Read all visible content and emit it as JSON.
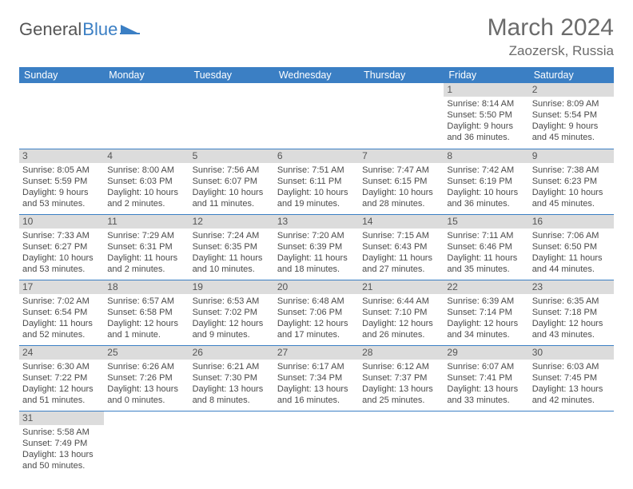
{
  "brand": {
    "part1": "General",
    "part2": "Blue"
  },
  "title": "March 2024",
  "location": "Zaozersk, Russia",
  "colors": {
    "header_bg": "#3b7fc4",
    "header_text": "#ffffff",
    "daynum_bg": "#dcdcdc",
    "row_border": "#3b7fc4",
    "text": "#4a4a4a",
    "title_text": "#6b6b6b",
    "page_bg": "#ffffff"
  },
  "weekdays": [
    "Sunday",
    "Monday",
    "Tuesday",
    "Wednesday",
    "Thursday",
    "Friday",
    "Saturday"
  ],
  "weeks": [
    [
      null,
      null,
      null,
      null,
      null,
      {
        "n": "1",
        "sunrise": "Sunrise: 8:14 AM",
        "sunset": "Sunset: 5:50 PM",
        "day1": "Daylight: 9 hours",
        "day2": "and 36 minutes."
      },
      {
        "n": "2",
        "sunrise": "Sunrise: 8:09 AM",
        "sunset": "Sunset: 5:54 PM",
        "day1": "Daylight: 9 hours",
        "day2": "and 45 minutes."
      }
    ],
    [
      {
        "n": "3",
        "sunrise": "Sunrise: 8:05 AM",
        "sunset": "Sunset: 5:59 PM",
        "day1": "Daylight: 9 hours",
        "day2": "and 53 minutes."
      },
      {
        "n": "4",
        "sunrise": "Sunrise: 8:00 AM",
        "sunset": "Sunset: 6:03 PM",
        "day1": "Daylight: 10 hours",
        "day2": "and 2 minutes."
      },
      {
        "n": "5",
        "sunrise": "Sunrise: 7:56 AM",
        "sunset": "Sunset: 6:07 PM",
        "day1": "Daylight: 10 hours",
        "day2": "and 11 minutes."
      },
      {
        "n": "6",
        "sunrise": "Sunrise: 7:51 AM",
        "sunset": "Sunset: 6:11 PM",
        "day1": "Daylight: 10 hours",
        "day2": "and 19 minutes."
      },
      {
        "n": "7",
        "sunrise": "Sunrise: 7:47 AM",
        "sunset": "Sunset: 6:15 PM",
        "day1": "Daylight: 10 hours",
        "day2": "and 28 minutes."
      },
      {
        "n": "8",
        "sunrise": "Sunrise: 7:42 AM",
        "sunset": "Sunset: 6:19 PM",
        "day1": "Daylight: 10 hours",
        "day2": "and 36 minutes."
      },
      {
        "n": "9",
        "sunrise": "Sunrise: 7:38 AM",
        "sunset": "Sunset: 6:23 PM",
        "day1": "Daylight: 10 hours",
        "day2": "and 45 minutes."
      }
    ],
    [
      {
        "n": "10",
        "sunrise": "Sunrise: 7:33 AM",
        "sunset": "Sunset: 6:27 PM",
        "day1": "Daylight: 10 hours",
        "day2": "and 53 minutes."
      },
      {
        "n": "11",
        "sunrise": "Sunrise: 7:29 AM",
        "sunset": "Sunset: 6:31 PM",
        "day1": "Daylight: 11 hours",
        "day2": "and 2 minutes."
      },
      {
        "n": "12",
        "sunrise": "Sunrise: 7:24 AM",
        "sunset": "Sunset: 6:35 PM",
        "day1": "Daylight: 11 hours",
        "day2": "and 10 minutes."
      },
      {
        "n": "13",
        "sunrise": "Sunrise: 7:20 AM",
        "sunset": "Sunset: 6:39 PM",
        "day1": "Daylight: 11 hours",
        "day2": "and 18 minutes."
      },
      {
        "n": "14",
        "sunrise": "Sunrise: 7:15 AM",
        "sunset": "Sunset: 6:43 PM",
        "day1": "Daylight: 11 hours",
        "day2": "and 27 minutes."
      },
      {
        "n": "15",
        "sunrise": "Sunrise: 7:11 AM",
        "sunset": "Sunset: 6:46 PM",
        "day1": "Daylight: 11 hours",
        "day2": "and 35 minutes."
      },
      {
        "n": "16",
        "sunrise": "Sunrise: 7:06 AM",
        "sunset": "Sunset: 6:50 PM",
        "day1": "Daylight: 11 hours",
        "day2": "and 44 minutes."
      }
    ],
    [
      {
        "n": "17",
        "sunrise": "Sunrise: 7:02 AM",
        "sunset": "Sunset: 6:54 PM",
        "day1": "Daylight: 11 hours",
        "day2": "and 52 minutes."
      },
      {
        "n": "18",
        "sunrise": "Sunrise: 6:57 AM",
        "sunset": "Sunset: 6:58 PM",
        "day1": "Daylight: 12 hours",
        "day2": "and 1 minute."
      },
      {
        "n": "19",
        "sunrise": "Sunrise: 6:53 AM",
        "sunset": "Sunset: 7:02 PM",
        "day1": "Daylight: 12 hours",
        "day2": "and 9 minutes."
      },
      {
        "n": "20",
        "sunrise": "Sunrise: 6:48 AM",
        "sunset": "Sunset: 7:06 PM",
        "day1": "Daylight: 12 hours",
        "day2": "and 17 minutes."
      },
      {
        "n": "21",
        "sunrise": "Sunrise: 6:44 AM",
        "sunset": "Sunset: 7:10 PM",
        "day1": "Daylight: 12 hours",
        "day2": "and 26 minutes."
      },
      {
        "n": "22",
        "sunrise": "Sunrise: 6:39 AM",
        "sunset": "Sunset: 7:14 PM",
        "day1": "Daylight: 12 hours",
        "day2": "and 34 minutes."
      },
      {
        "n": "23",
        "sunrise": "Sunrise: 6:35 AM",
        "sunset": "Sunset: 7:18 PM",
        "day1": "Daylight: 12 hours",
        "day2": "and 43 minutes."
      }
    ],
    [
      {
        "n": "24",
        "sunrise": "Sunrise: 6:30 AM",
        "sunset": "Sunset: 7:22 PM",
        "day1": "Daylight: 12 hours",
        "day2": "and 51 minutes."
      },
      {
        "n": "25",
        "sunrise": "Sunrise: 6:26 AM",
        "sunset": "Sunset: 7:26 PM",
        "day1": "Daylight: 13 hours",
        "day2": "and 0 minutes."
      },
      {
        "n": "26",
        "sunrise": "Sunrise: 6:21 AM",
        "sunset": "Sunset: 7:30 PM",
        "day1": "Daylight: 13 hours",
        "day2": "and 8 minutes."
      },
      {
        "n": "27",
        "sunrise": "Sunrise: 6:17 AM",
        "sunset": "Sunset: 7:34 PM",
        "day1": "Daylight: 13 hours",
        "day2": "and 16 minutes."
      },
      {
        "n": "28",
        "sunrise": "Sunrise: 6:12 AM",
        "sunset": "Sunset: 7:37 PM",
        "day1": "Daylight: 13 hours",
        "day2": "and 25 minutes."
      },
      {
        "n": "29",
        "sunrise": "Sunrise: 6:07 AM",
        "sunset": "Sunset: 7:41 PM",
        "day1": "Daylight: 13 hours",
        "day2": "and 33 minutes."
      },
      {
        "n": "30",
        "sunrise": "Sunrise: 6:03 AM",
        "sunset": "Sunset: 7:45 PM",
        "day1": "Daylight: 13 hours",
        "day2": "and 42 minutes."
      }
    ],
    [
      {
        "n": "31",
        "sunrise": "Sunrise: 5:58 AM",
        "sunset": "Sunset: 7:49 PM",
        "day1": "Daylight: 13 hours",
        "day2": "and 50 minutes."
      },
      null,
      null,
      null,
      null,
      null,
      null
    ]
  ]
}
